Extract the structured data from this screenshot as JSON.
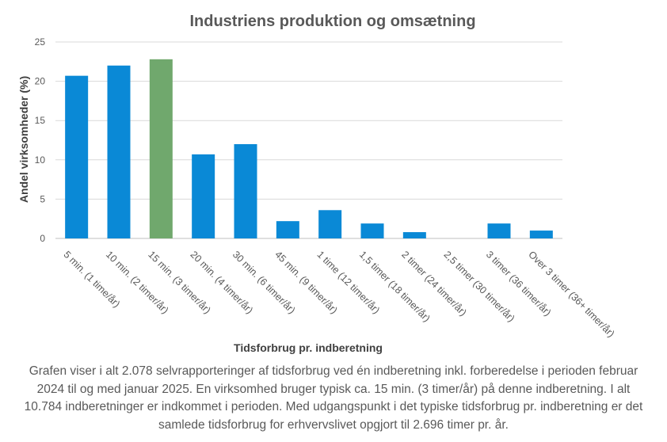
{
  "chart_data": {
    "type": "bar",
    "title": "Industriens produktion og omsætning",
    "xlabel": "Tidsforbrug pr. indberetning",
    "ylabel": "Andel virksomheder  (%)",
    "ylim": [
      0,
      25
    ],
    "yticks": [
      0,
      5,
      10,
      15,
      20,
      25
    ],
    "grid": true,
    "categories": [
      "5 min. (1 time/år)",
      "10 min. (2 timer/år)",
      "15 min. (3 timer/år)",
      "20 min. (4 timer/år)",
      "30 min. (6 timer/år)",
      "45 min. (9 timer/år)",
      "1 time (12 timer/år)",
      "1,5 timer (18 timer/år)",
      "2 timer (24 timer/år)",
      "2,5 timer (30 timer/år)",
      "3 timer (36 timer/år)",
      "Over 3 timer (36+ timer/år)"
    ],
    "values": [
      20.7,
      22.0,
      22.8,
      10.7,
      12.0,
      2.2,
      3.6,
      1.9,
      0.8,
      0.0,
      1.9,
      1.0
    ],
    "highlight_index": 2,
    "colors": {
      "default": "#0a89d6",
      "highlight": "#70a86d"
    }
  },
  "caption": "Grafen viser i alt 2.078 selvrapporteringer af tidsforbrug ved én indberetning inkl. forberedelse i perioden februar 2024 til og med januar 2025. En virksomhed bruger typisk ca. 15 min. (3 timer/år) på denne indberetning. I alt 10.784 indberetninger er indkommet i perioden. Med udgangspunkt i det typiske tidsforbrug pr. indberetning er det samlede tidsforbrug for erhvervslivet opgjort til 2.696 timer pr. år."
}
